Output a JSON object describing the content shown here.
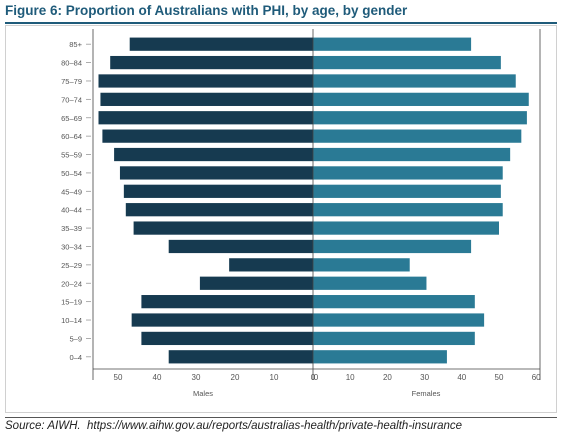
{
  "figure": {
    "title": "Figure 6: Proportion of Australians with PHI, by age, by gender",
    "source_label": "Source: AIWH.",
    "source_url": "https://www.aihw.gov.au/reports/australias-health/private-health-insurance"
  },
  "colors": {
    "title": "#1f5b7a",
    "males": "#163a50",
    "females": "#2a7a95",
    "axis": "#555555",
    "tick_text": "#555555"
  },
  "chart_data": {
    "type": "bar",
    "orientation": "horizontal-diverging",
    "title": "",
    "categories": [
      "85+",
      "80–84",
      "75–79",
      "70–74",
      "65–69",
      "60–64",
      "55–59",
      "50–54",
      "45–49",
      "40–44",
      "35–39",
      "30–34",
      "25–29",
      "20–24",
      "15–19",
      "10–14",
      "5–9",
      "0–4"
    ],
    "series": [
      {
        "name": "Males",
        "values": [
          47,
          52,
          55,
          54.5,
          55,
          54,
          51,
          49.5,
          48.5,
          48,
          46,
          37,
          21.5,
          29,
          44,
          46.5,
          44,
          37
        ]
      },
      {
        "name": "Females",
        "values": [
          42.5,
          50.5,
          54.5,
          58,
          57.5,
          56,
          53,
          51,
          50.5,
          51,
          50,
          42.5,
          26,
          30.5,
          43.5,
          46,
          43.5,
          36
        ]
      }
    ],
    "xlim_males": [
      60,
      0
    ],
    "xlim_females": [
      0,
      60
    ],
    "x_ticks_males": [
      "50",
      "40",
      "30",
      "20",
      "10",
      "0"
    ],
    "x_ticks_females": [
      "0",
      "10",
      "20",
      "30",
      "40",
      "50",
      "60"
    ],
    "x_tick_values_males": [
      50,
      40,
      30,
      20,
      10,
      0
    ],
    "x_tick_values_females": [
      0,
      10,
      20,
      30,
      40,
      50,
      60
    ],
    "xlabel_males": "Males",
    "xlabel_females": "Females",
    "grid": false
  }
}
